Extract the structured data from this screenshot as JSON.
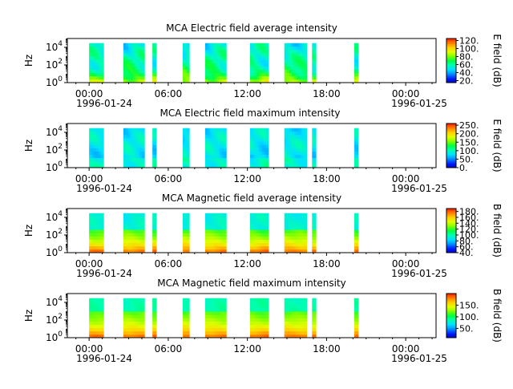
{
  "colors": {
    "colormap": [
      "#0000c8",
      "#0020ff",
      "#0090ff",
      "#00e0ff",
      "#00ffb0",
      "#00ff40",
      "#80ff00",
      "#e0ff00",
      "#ffd000",
      "#ff8000",
      "#ff2000"
    ],
    "axis": "#000000",
    "background": "#ffffff"
  },
  "chart_data": [
    {
      "type": "heatmap",
      "title": "MCA  Electric field average intensity",
      "ylabel": "Hz",
      "ylim": [
        1,
        100000
      ],
      "y_scale": "log",
      "y_ticks": [
        {
          "value": 1,
          "base": "10",
          "exp": "0"
        },
        {
          "value": 100,
          "base": "10",
          "exp": "2"
        },
        {
          "value": 10000,
          "base": "10",
          "exp": "4"
        }
      ],
      "x_range": [
        "1996-01-24 00:00",
        "1996-01-25 02:00"
      ],
      "x_ticks": [
        {
          "hour": 0,
          "time": "00:00",
          "date": "1996-01-24"
        },
        {
          "hour": 6,
          "time": "06:00",
          "date": ""
        },
        {
          "hour": 12,
          "time": "12:00",
          "date": ""
        },
        {
          "hour": 18,
          "time": "18:00",
          "date": ""
        },
        {
          "hour": 24,
          "time": "00:00",
          "date": "1996-01-25"
        }
      ],
      "data_blocks_hours": [
        [
          0.0,
          1.1
        ],
        [
          2.6,
          4.2
        ],
        [
          4.8,
          5.1
        ],
        [
          7.1,
          7.6
        ],
        [
          8.8,
          10.4
        ],
        [
          12.2,
          13.6
        ],
        [
          14.8,
          16.5
        ],
        [
          16.9,
          17.2
        ],
        [
          20.1,
          20.4
        ]
      ],
      "colorbar": {
        "label": "E field (dB)",
        "min": 15,
        "max": 125,
        "ticks": [
          20,
          40,
          60,
          80,
          100,
          120
        ],
        "tick_labels": [
          "20.",
          "40.",
          "60.",
          "80.",
          "100.",
          "120."
        ]
      }
    },
    {
      "type": "heatmap",
      "title": "MCA  Electric field maximum intensity",
      "ylabel": "Hz",
      "ylim": [
        1,
        100000
      ],
      "y_scale": "log",
      "y_ticks": [
        {
          "value": 1,
          "base": "10",
          "exp": "0"
        },
        {
          "value": 100,
          "base": "10",
          "exp": "2"
        },
        {
          "value": 10000,
          "base": "10",
          "exp": "4"
        }
      ],
      "x_range": [
        "1996-01-24 00:00",
        "1996-01-25 02:00"
      ],
      "x_ticks": [
        {
          "hour": 0,
          "time": "00:00",
          "date": "1996-01-24"
        },
        {
          "hour": 6,
          "time": "06:00",
          "date": ""
        },
        {
          "hour": 12,
          "time": "12:00",
          "date": ""
        },
        {
          "hour": 18,
          "time": "18:00",
          "date": ""
        },
        {
          "hour": 24,
          "time": "00:00",
          "date": "1996-01-25"
        }
      ],
      "data_blocks_hours": [
        [
          0.0,
          1.1
        ],
        [
          2.6,
          4.2
        ],
        [
          4.8,
          5.1
        ],
        [
          7.1,
          7.6
        ],
        [
          8.8,
          10.4
        ],
        [
          12.2,
          13.6
        ],
        [
          14.8,
          16.5
        ],
        [
          16.9,
          17.2
        ],
        [
          20.1,
          20.4
        ]
      ],
      "colorbar": {
        "label": "E field (dB)",
        "min": 0,
        "max": 260,
        "ticks": [
          0,
          50,
          100,
          150,
          200,
          250
        ],
        "tick_labels": [
          "0.",
          "50.",
          "100.",
          "150.",
          "200.",
          "250."
        ]
      }
    },
    {
      "type": "heatmap",
      "title": "MCA  Magnetic field average intensity",
      "ylabel": "Hz",
      "ylim": [
        1,
        100000
      ],
      "y_scale": "log",
      "y_ticks": [
        {
          "value": 1,
          "base": "10",
          "exp": "0"
        },
        {
          "value": 100,
          "base": "10",
          "exp": "2"
        },
        {
          "value": 10000,
          "base": "10",
          "exp": "4"
        }
      ],
      "x_range": [
        "1996-01-24 00:00",
        "1996-01-25 02:00"
      ],
      "x_ticks": [
        {
          "hour": 0,
          "time": "00:00",
          "date": "1996-01-24"
        },
        {
          "hour": 6,
          "time": "06:00",
          "date": ""
        },
        {
          "hour": 12,
          "time": "12:00",
          "date": ""
        },
        {
          "hour": 18,
          "time": "18:00",
          "date": ""
        },
        {
          "hour": 24,
          "time": "00:00",
          "date": "1996-01-25"
        }
      ],
      "data_blocks_hours": [
        [
          0.0,
          1.1
        ],
        [
          2.6,
          4.2
        ],
        [
          4.8,
          5.1
        ],
        [
          7.1,
          7.6
        ],
        [
          8.8,
          10.4
        ],
        [
          12.2,
          13.6
        ],
        [
          14.8,
          16.5
        ],
        [
          16.9,
          17.2
        ],
        [
          20.1,
          20.4
        ]
      ],
      "colorbar": {
        "label": "B field (dB)",
        "min": 40,
        "max": 190,
        "ticks": [
          40,
          60,
          80,
          100,
          120,
          140,
          160,
          180
        ],
        "tick_labels": [
          "40.",
          "60.",
          "80.",
          "100.",
          "120.",
          "140.",
          "160.",
          "180."
        ]
      }
    },
    {
      "type": "heatmap",
      "title": "MCA  Magnetic field maximum intensity",
      "ylabel": "Hz",
      "ylim": [
        1,
        100000
      ],
      "y_scale": "log",
      "y_ticks": [
        {
          "value": 1,
          "base": "10",
          "exp": "0"
        },
        {
          "value": 100,
          "base": "10",
          "exp": "2"
        },
        {
          "value": 10000,
          "base": "10",
          "exp": "4"
        }
      ],
      "x_range": [
        "1996-01-24 00:00",
        "1996-01-25 02:00"
      ],
      "x_ticks": [
        {
          "hour": 0,
          "time": "00:00",
          "date": "1996-01-24"
        },
        {
          "hour": 6,
          "time": "06:00",
          "date": ""
        },
        {
          "hour": 12,
          "time": "12:00",
          "date": ""
        },
        {
          "hour": 18,
          "time": "18:00",
          "date": ""
        },
        {
          "hour": 24,
          "time": "00:00",
          "date": "1996-01-25"
        }
      ],
      "data_blocks_hours": [
        [
          0.0,
          1.1
        ],
        [
          2.6,
          4.2
        ],
        [
          4.8,
          5.1
        ],
        [
          7.1,
          7.6
        ],
        [
          8.8,
          10.4
        ],
        [
          12.2,
          13.6
        ],
        [
          14.8,
          16.5
        ],
        [
          16.9,
          17.2
        ],
        [
          20.1,
          20.4
        ]
      ],
      "colorbar": {
        "label": "B field (dB)",
        "min": 10,
        "max": 200,
        "ticks": [
          50,
          100,
          150
        ],
        "tick_labels": [
          "50.",
          "100.",
          "150."
        ]
      }
    }
  ]
}
